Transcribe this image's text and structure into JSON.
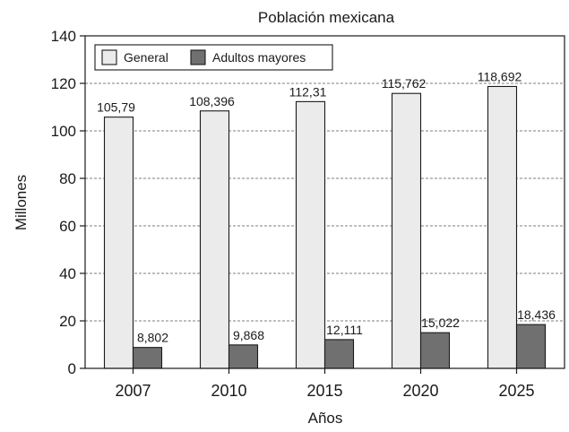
{
  "chart_data": {
    "type": "bar",
    "title": "Población mexicana",
    "xlabel": "Años",
    "ylabel": "Millones",
    "categories": [
      "2007",
      "2010",
      "2015",
      "2020",
      "2025"
    ],
    "series": [
      {
        "name": "General",
        "values": [
          105.79,
          108.396,
          112.31,
          115.762,
          118.692
        ],
        "labels": [
          "105,79",
          "108,396",
          "112,31",
          "115,762",
          "118,692"
        ],
        "color": "#ebebeb"
      },
      {
        "name": "Adultos mayores",
        "values": [
          8.802,
          9.868,
          12.111,
          15.022,
          18.436
        ],
        "labels": [
          "8,802",
          "9,868",
          "12,111",
          "15,022",
          "18,436"
        ],
        "color": "#707070"
      }
    ],
    "ylim": [
      0,
      140
    ],
    "yticks": [
      "0",
      "20",
      "40",
      "60",
      "80",
      "100",
      "120",
      "140"
    ],
    "grid": true,
    "legend_position": "top-left"
  }
}
